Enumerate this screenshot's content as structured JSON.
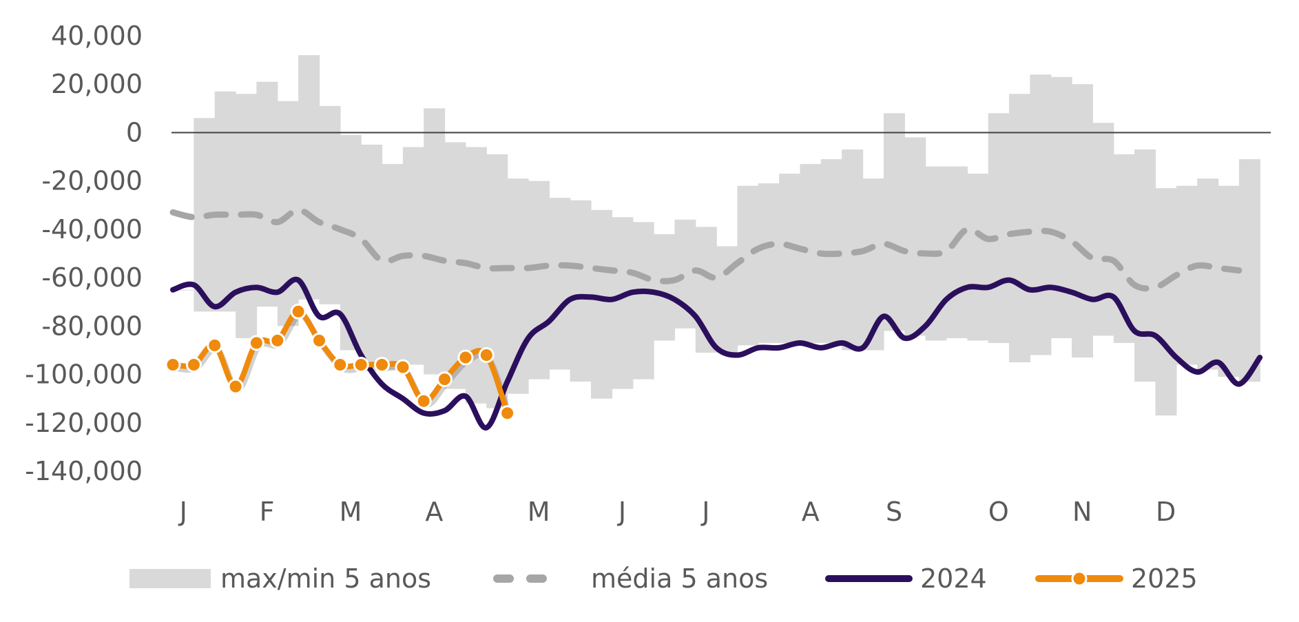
{
  "chart_data": {
    "type": "line",
    "title": "",
    "xlabel": "",
    "ylabel": "",
    "ylim": [
      -140000,
      40000
    ],
    "yticks": [
      40000,
      20000,
      0,
      -20000,
      -40000,
      -60000,
      -80000,
      -100000,
      -120000,
      -140000
    ],
    "ytick_labels": [
      "40,000",
      "20,000",
      "0",
      "-20,000",
      "-40,000",
      "-60,000",
      "-80,000",
      "-100,000",
      "-120,000",
      "-140,000"
    ],
    "x_unit": "week of year",
    "xlim": [
      1,
      53
    ],
    "month_labels": [
      "J",
      "F",
      "M",
      "A",
      "M",
      "J",
      "J",
      "A",
      "S",
      "O",
      "N",
      "D"
    ],
    "month_label_weeks": [
      1,
      5,
      9,
      13,
      18,
      22,
      26,
      31,
      35,
      40,
      44,
      48
    ],
    "legend": {
      "position": "bottom",
      "band": "max/min 5 anos",
      "avg": "média 5 anos",
      "y2024": "2024",
      "y2025": "2025"
    },
    "colors": {
      "band": "#d9d9d9",
      "avg": "#a6a6a6",
      "y2024": "#2b0f5c",
      "y2025": "#ef8a0c",
      "zero_line": "#404040",
      "tick_text": "#595959"
    },
    "series": [
      {
        "name": "max/min 5 anos",
        "kind": "band",
        "max": [
          -65000,
          6000,
          17000,
          16000,
          21000,
          13000,
          32000,
          11000,
          -1000,
          -5000,
          -13000,
          -6000,
          10000,
          -4000,
          -6000,
          -9000,
          -19000,
          -20000,
          -27000,
          -28000,
          -32000,
          -35000,
          -37000,
          -42000,
          -36000,
          -39000,
          -47000,
          -22000,
          -21000,
          -17000,
          -13000,
          -11000,
          -7000,
          -19000,
          8000,
          -2000,
          -14000,
          -14000,
          -17000,
          8000,
          16000,
          24000,
          23000,
          20000,
          4000,
          -9000,
          -7000,
          -23000,
          -22000,
          -19000,
          -22000,
          -11000
        ],
        "min": [
          -65000,
          -74000,
          -74000,
          -85000,
          -72000,
          -80000,
          -69000,
          -71000,
          -90000,
          -96000,
          -98000,
          -96000,
          -100000,
          -106000,
          -112000,
          -114000,
          -108000,
          -102000,
          -98000,
          -103000,
          -110000,
          -106000,
          -102000,
          -86000,
          -81000,
          -91000,
          -91000,
          -88000,
          -87000,
          -87000,
          -87000,
          -87000,
          -90000,
          -90000,
          -82000,
          -84000,
          -86000,
          -85000,
          -86000,
          -87000,
          -95000,
          -92000,
          -85000,
          -93000,
          -84000,
          -87000,
          -103000,
          -117000,
          -96000,
          -98000,
          -101000,
          -103000
        ]
      },
      {
        "name": "média 5 anos",
        "kind": "dashed",
        "x": [
          1,
          2,
          3,
          4,
          5,
          6,
          7,
          8,
          9,
          10,
          11,
          12,
          13,
          14,
          15,
          16,
          17,
          18,
          19,
          20,
          21,
          22,
          23,
          24,
          25,
          26,
          27,
          28,
          29,
          30,
          31,
          32,
          33,
          34,
          35,
          36,
          37,
          38,
          39,
          40,
          41,
          42,
          43,
          44,
          45,
          46,
          47,
          48,
          49,
          50,
          51,
          52
        ],
        "values": [
          -33000,
          -35000,
          -34000,
          -34000,
          -34000,
          -37000,
          -32000,
          -37000,
          -40000,
          -44000,
          -53000,
          -51000,
          -51000,
          -53000,
          -54000,
          -56000,
          -56000,
          -56000,
          -55000,
          -55000,
          -56000,
          -57000,
          -58000,
          -61000,
          -61000,
          -57000,
          -60000,
          -54000,
          -48000,
          -46000,
          -48000,
          -50000,
          -50000,
          -49000,
          -46000,
          -49000,
          -50000,
          -49000,
          -40000,
          -44000,
          -42000,
          -41000,
          -41000,
          -45000,
          -52000,
          -53000,
          -63000,
          -64000,
          -59000,
          -55000,
          -56000,
          -57000
        ]
      },
      {
        "name": "2024",
        "kind": "solid",
        "x": [
          1,
          2,
          3,
          4,
          5,
          6,
          7,
          8,
          9,
          10,
          11,
          12,
          13,
          14,
          15,
          16,
          17,
          18,
          19,
          20,
          21,
          22,
          23,
          24,
          25,
          26,
          27,
          28,
          29,
          30,
          31,
          32,
          33,
          34,
          35,
          36,
          37,
          38,
          39,
          40,
          41,
          42,
          43,
          44,
          45,
          46,
          47,
          48,
          49,
          50,
          51,
          52,
          53
        ],
        "values": [
          -65000,
          -63000,
          -72000,
          -66000,
          -64000,
          -66000,
          -61000,
          -76000,
          -75000,
          -92000,
          -104000,
          -110000,
          -116000,
          -115000,
          -109000,
          -122000,
          -103000,
          -85000,
          -78000,
          -69000,
          -68000,
          -69000,
          -66000,
          -66000,
          -69000,
          -76000,
          -89000,
          -92000,
          -89000,
          -89000,
          -87000,
          -89000,
          -87000,
          -89000,
          -76000,
          -85000,
          -80000,
          -69000,
          -64000,
          -64000,
          -61000,
          -65000,
          -64000,
          -66000,
          -69000,
          -68000,
          -82000,
          -84000,
          -93000,
          -99000,
          -95000,
          -104000,
          -93000
        ]
      },
      {
        "name": "2025",
        "kind": "markers",
        "x": [
          1,
          2,
          3,
          4,
          5,
          6,
          7,
          8,
          9,
          10,
          11,
          12,
          13,
          14,
          15,
          16,
          17
        ],
        "values": [
          -96000,
          -96000,
          -88000,
          -105000,
          -87000,
          -86000,
          -74000,
          -86000,
          -96000,
          -96000,
          -96000,
          -97000,
          -111000,
          -102000,
          -93000,
          -92000,
          -116000
        ]
      }
    ]
  }
}
